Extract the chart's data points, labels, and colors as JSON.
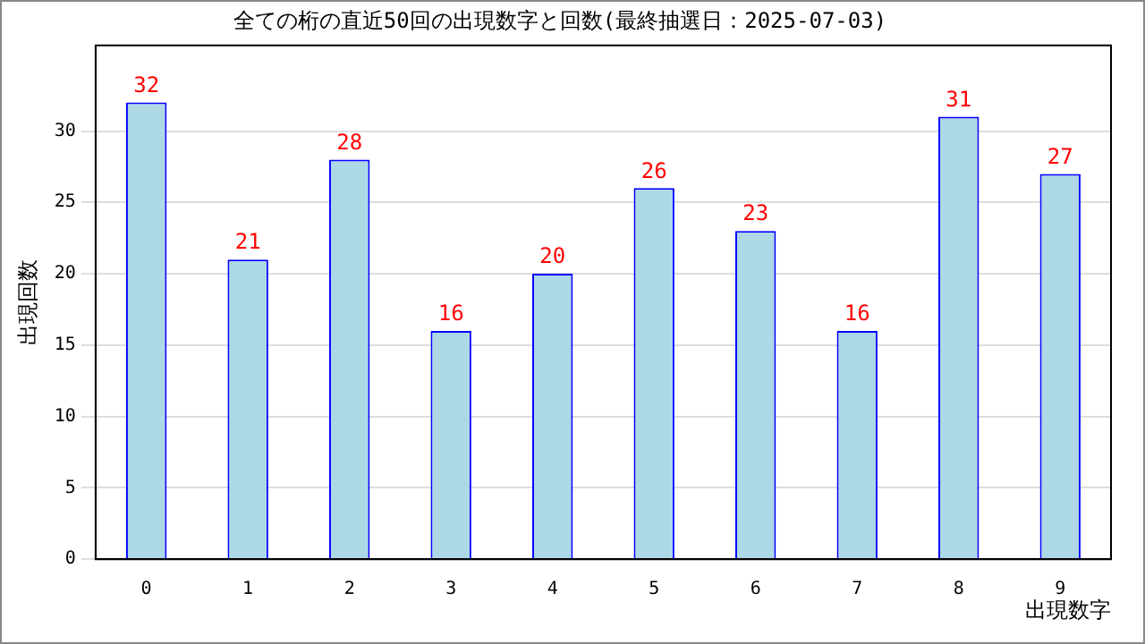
{
  "chart_data": {
    "type": "bar",
    "title": "全ての桁の直近50回の出現数字と回数(最終抽選日：2025-07-03)",
    "xlabel": "出現数字",
    "ylabel": "出現回数",
    "categories": [
      "0",
      "1",
      "2",
      "3",
      "4",
      "5",
      "6",
      "7",
      "8",
      "9"
    ],
    "series": [
      {
        "color": "#add8e6",
        "values": [
          32,
          21,
          28,
          16,
          20,
          26,
          23,
          16,
          31,
          27
        ]
      }
    ],
    "ylim": [
      0,
      36
    ],
    "yticks": [
      0,
      5,
      10,
      15,
      20,
      25,
      30
    ],
    "grid": "y",
    "data_labels": true,
    "legend": false
  }
}
